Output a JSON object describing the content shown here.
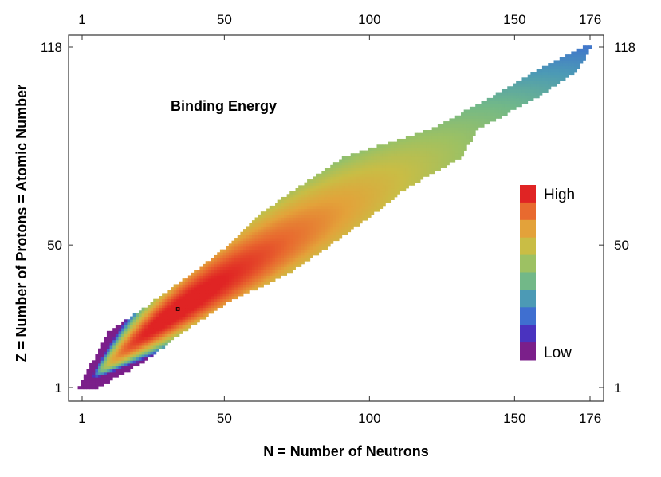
{
  "chart_data": {
    "type": "heatmap",
    "title": "Binding Energy",
    "xlabel": "N = Number of Neutrons",
    "ylabel": "Z = Number of Protons = Atomic Number",
    "xlim": [
      1,
      176
    ],
    "ylim": [
      1,
      118
    ],
    "x_ticks": [
      1,
      50,
      100,
      150,
      176
    ],
    "y_ticks": [
      1,
      50,
      118
    ],
    "grid": false,
    "band_extent_by_Z": [
      {
        "Z": 1,
        "N": [
          0,
          6
        ]
      },
      {
        "Z": 10,
        "N": [
          5,
          22
        ]
      },
      {
        "Z": 20,
        "N": [
          10,
          35
        ]
      },
      {
        "Z": 30,
        "N": [
          25,
          50
        ]
      },
      {
        "Z": 40,
        "N": [
          39,
          71
        ]
      },
      {
        "Z": 50,
        "N": [
          52,
          86
        ]
      },
      {
        "Z": 60,
        "N": [
          62,
          100
        ]
      },
      {
        "Z": 70,
        "N": [
          76,
          113
        ]
      },
      {
        "Z": 80,
        "N": [
          91,
          131
        ]
      },
      {
        "Z": 90,
        "N": [
          122,
          137
        ]
      },
      {
        "Z": 100,
        "N": [
          141,
          156
        ]
      },
      {
        "Z": 110,
        "N": [
          158,
          171
        ]
      },
      {
        "Z": 118,
        "N": [
          174,
          176
        ]
      }
    ],
    "highlighted_cell": {
      "N": 34,
      "Z": 28
    },
    "legend": {
      "placement": "right",
      "high_label": "High",
      "low_label": "Low",
      "colors": [
        "#e02424",
        "#e86a2f",
        "#e3a23a",
        "#c9bd45",
        "#9dc163",
        "#72b888",
        "#4c9ab5",
        "#3f6fd0",
        "#4a33bf",
        "#7b1f8a"
      ]
    }
  }
}
